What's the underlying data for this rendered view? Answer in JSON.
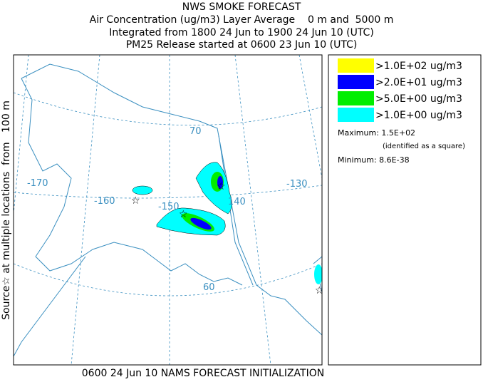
{
  "header": {
    "title": "NWS SMOKE FORECAST",
    "lines": [
      "Air Concentration (ug/m3) Layer Average    0 m and  5000 m",
      "Integrated from 1800 24 Jun to 1900 24 Jun 10 (UTC)",
      "PM25 Release started at 0600 23 Jun 10 (UTC)"
    ]
  },
  "side_label": "Source☆ at multiple locations  from   100 m",
  "footer": "0600 24 Jun 10 NAMS FORECAST INITIALIZATION",
  "legend": {
    "items": [
      {
        "label": ">1.0E+02 ug/m3",
        "color": "#ffff00"
      },
      {
        "label": ">2.0E+01 ug/m3",
        "color": "#0000ff"
      },
      {
        "label": ">5.0E+00 ug/m3",
        "color": "#00ee00"
      },
      {
        "label": ">1.0E+00 ug/m3",
        "color": "#00ffff"
      }
    ],
    "maximum": "Maximum: 1.5E+02",
    "maximum_note": "(identified as a square)",
    "minimum": "Minimum: 8.6E-38"
  },
  "map_labels": [
    "-170",
    "-160",
    "-150",
    "140",
    "-130",
    "70",
    "60"
  ]
}
